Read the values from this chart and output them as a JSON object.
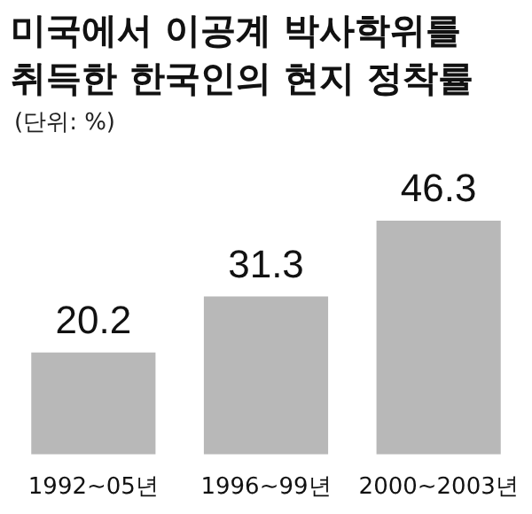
{
  "chart_data": {
    "type": "bar",
    "title": "미국에서 이공계 박사학위를\n취득한 한국인의 현지 정착률",
    "subtitle": "(단위: %)",
    "categories": [
      "1992~05년",
      "1996~99년",
      "2000~2003년"
    ],
    "values": [
      20.2,
      31.3,
      46.3
    ],
    "color": "#b8b8b8",
    "data_labels": true
  }
}
